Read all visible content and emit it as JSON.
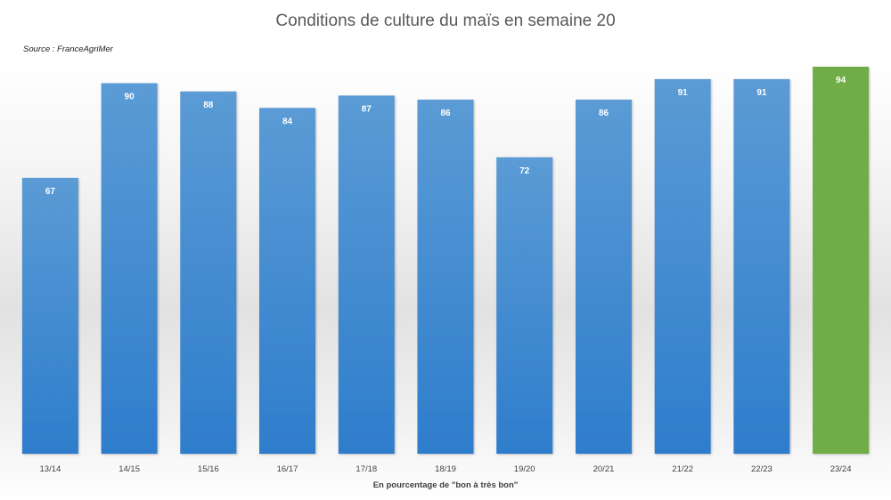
{
  "chart_data": {
    "type": "bar",
    "title": "Conditions de culture du maïs en semaine 20",
    "source": "Source : FranceAgriMer",
    "xlabel": "En pourcentage  de \"bon à très bon\"",
    "ylabel": "",
    "categories": [
      "13/14",
      "14/15",
      "15/16",
      "16/17",
      "17/18",
      "18/19",
      "19/20",
      "20/21",
      "21/22",
      "22/23",
      "23/24"
    ],
    "values": [
      67,
      90,
      88,
      84,
      87,
      86,
      72,
      86,
      91,
      91,
      94
    ],
    "ylim": [
      0,
      94
    ],
    "grid": false,
    "legend": "none",
    "data_labels": true,
    "colors": {
      "bar_top": "#5b9bd5",
      "bar_bottom": "#2e7dcc",
      "highlight": "#70ad47",
      "highlight_category": "23/24"
    }
  }
}
